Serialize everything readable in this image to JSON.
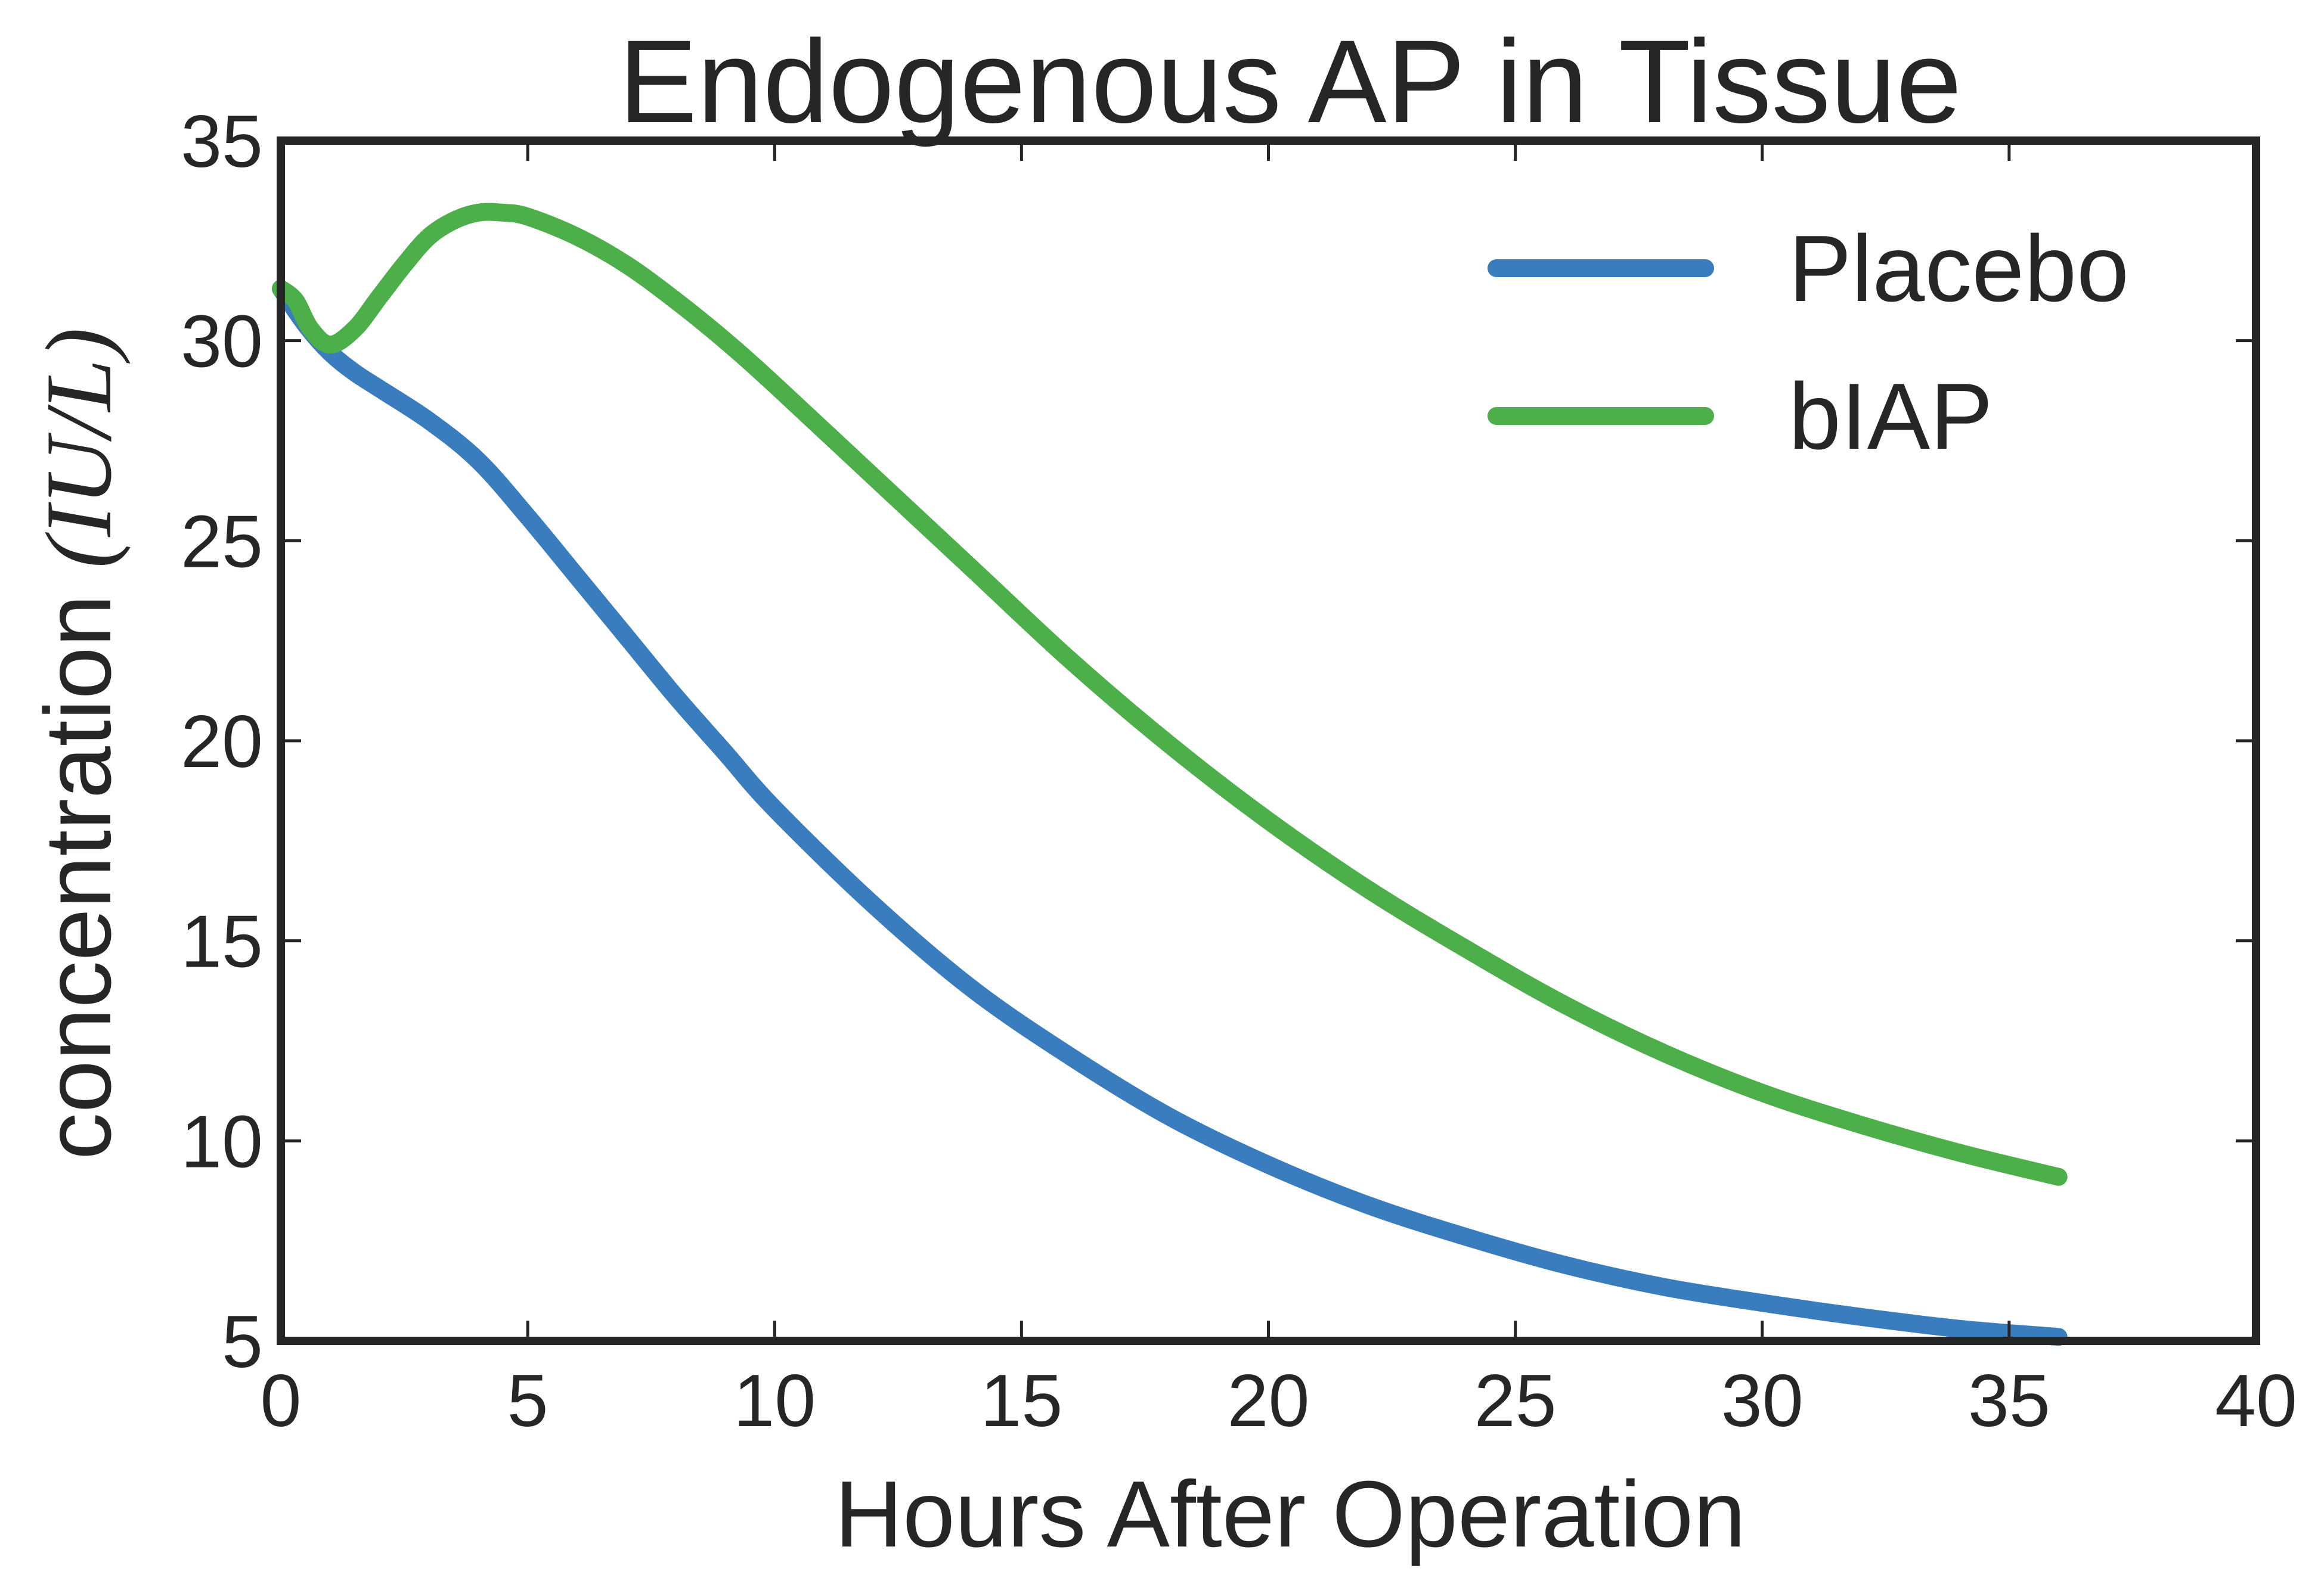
{
  "chart_data": {
    "type": "line",
    "title": "Endogenous AP in Tissue",
    "xlabel": "Hours After Operation",
    "ylabel": "concentration ",
    "ylabel_math": "(IU/L)",
    "xlim": [
      0,
      40
    ],
    "ylim": [
      5,
      35
    ],
    "xticks": [
      0,
      5,
      10,
      15,
      20,
      25,
      30,
      35,
      40
    ],
    "yticks": [
      5,
      10,
      15,
      20,
      25,
      30,
      35
    ],
    "xtick_labels": [
      "0",
      "5",
      "10",
      "15",
      "20",
      "25",
      "30",
      "35",
      "40"
    ],
    "ytick_labels": [
      "5",
      "10",
      "15",
      "20",
      "25",
      "30",
      "35"
    ],
    "grid": false,
    "legend_position": "top-right",
    "series": [
      {
        "name": "Placebo",
        "color": "#3a7dbf",
        "x": [
          0,
          0.5,
          1,
          1.5,
          2,
          3,
          4,
          5,
          6,
          7,
          8,
          9,
          10,
          12,
          14,
          16,
          18,
          20,
          22,
          24,
          26,
          28,
          30,
          32,
          34,
          36
        ],
        "y": [
          31.3,
          30.4,
          29.7,
          29.2,
          28.8,
          28.0,
          27.0,
          25.6,
          24.1,
          22.6,
          21.1,
          19.7,
          18.3,
          15.9,
          13.8,
          12.1,
          10.6,
          9.4,
          8.4,
          7.6,
          6.9,
          6.35,
          5.95,
          5.6,
          5.3,
          5.1
        ]
      },
      {
        "name": "bIAP",
        "color": "#4daf4a",
        "x": [
          0,
          0.3,
          0.6,
          1,
          1.5,
          2,
          2.5,
          3,
          3.5,
          4,
          4.5,
          5,
          6,
          7,
          8,
          9,
          10,
          12,
          14,
          16,
          18,
          20,
          22,
          24,
          26,
          28,
          30,
          32,
          34,
          36
        ],
        "y": [
          31.3,
          31.0,
          30.3,
          29.9,
          30.3,
          31.1,
          31.9,
          32.6,
          33.0,
          33.2,
          33.2,
          33.1,
          32.6,
          31.9,
          31.0,
          30.0,
          28.9,
          26.6,
          24.3,
          22.0,
          19.9,
          18.0,
          16.3,
          14.8,
          13.4,
          12.2,
          11.2,
          10.4,
          9.7,
          9.1
        ]
      }
    ]
  }
}
